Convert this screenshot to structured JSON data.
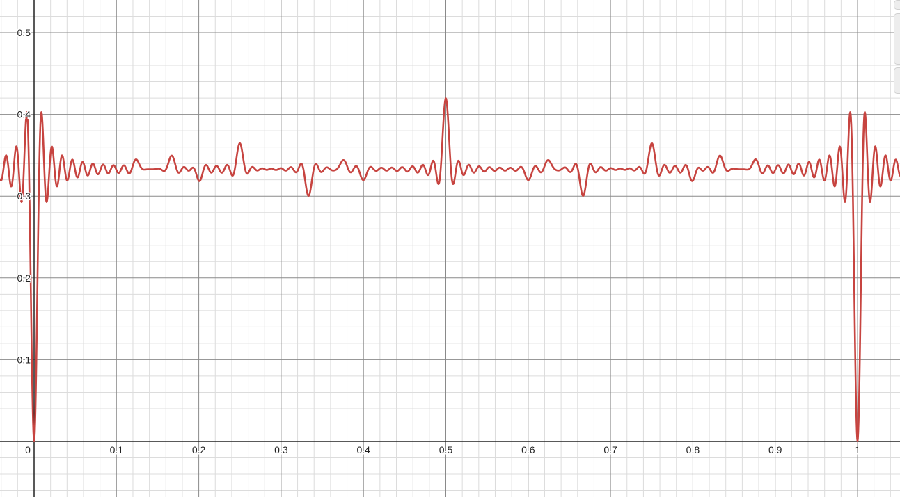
{
  "chart_data": {
    "type": "line",
    "title": "",
    "xlabel": "",
    "ylabel": "",
    "xlim": [
      -0.041,
      1.052
    ],
    "ylim": [
      -0.068,
      0.54
    ],
    "grid": true,
    "x_ticks": [
      "0",
      "0.1",
      "0.2",
      "0.3",
      "0.4",
      "0.5",
      "0.6",
      "0.7",
      "0.8",
      "0.9",
      "1"
    ],
    "x_tick_values": [
      0,
      0.1,
      0.2,
      0.3,
      0.4,
      0.5,
      0.6,
      0.7,
      0.8,
      0.9,
      1
    ],
    "y_ticks": [
      "0.1",
      "0.2",
      "0.3",
      "0.4",
      "0.5"
    ],
    "y_tick_values": [
      0.1,
      0.2,
      0.3,
      0.4,
      0.5
    ],
    "series": [
      {
        "color": "#c74440",
        "baseline": 0.333,
        "features": [
          {
            "x": 0,
            "y": 0
          },
          {
            "x": 1,
            "y": 0
          },
          {
            "x": 0.5,
            "y": 0.42
          },
          {
            "x": 0.25,
            "y": 0.365
          },
          {
            "x": 0.75,
            "y": 0.365
          },
          {
            "x": 0.3333,
            "y": 0.3
          },
          {
            "x": 0.6667,
            "y": 0.3
          },
          {
            "x": 0.1667,
            "y": 0.35
          },
          {
            "x": 0.8333,
            "y": 0.35
          },
          {
            "x": 0.125,
            "y": 0.345
          },
          {
            "x": 0.375,
            "y": 0.345
          },
          {
            "x": 0.625,
            "y": 0.345
          },
          {
            "x": 0.875,
            "y": 0.345
          },
          {
            "x": 0.2,
            "y": 0.32
          },
          {
            "x": 0.4,
            "y": 0.32
          },
          {
            "x": 0.6,
            "y": 0.32
          },
          {
            "x": 0.8,
            "y": 0.32
          }
        ]
      }
    ]
  },
  "controls": {
    "zoom_in": "+",
    "zoom_out": "−",
    "home": "⌂"
  }
}
